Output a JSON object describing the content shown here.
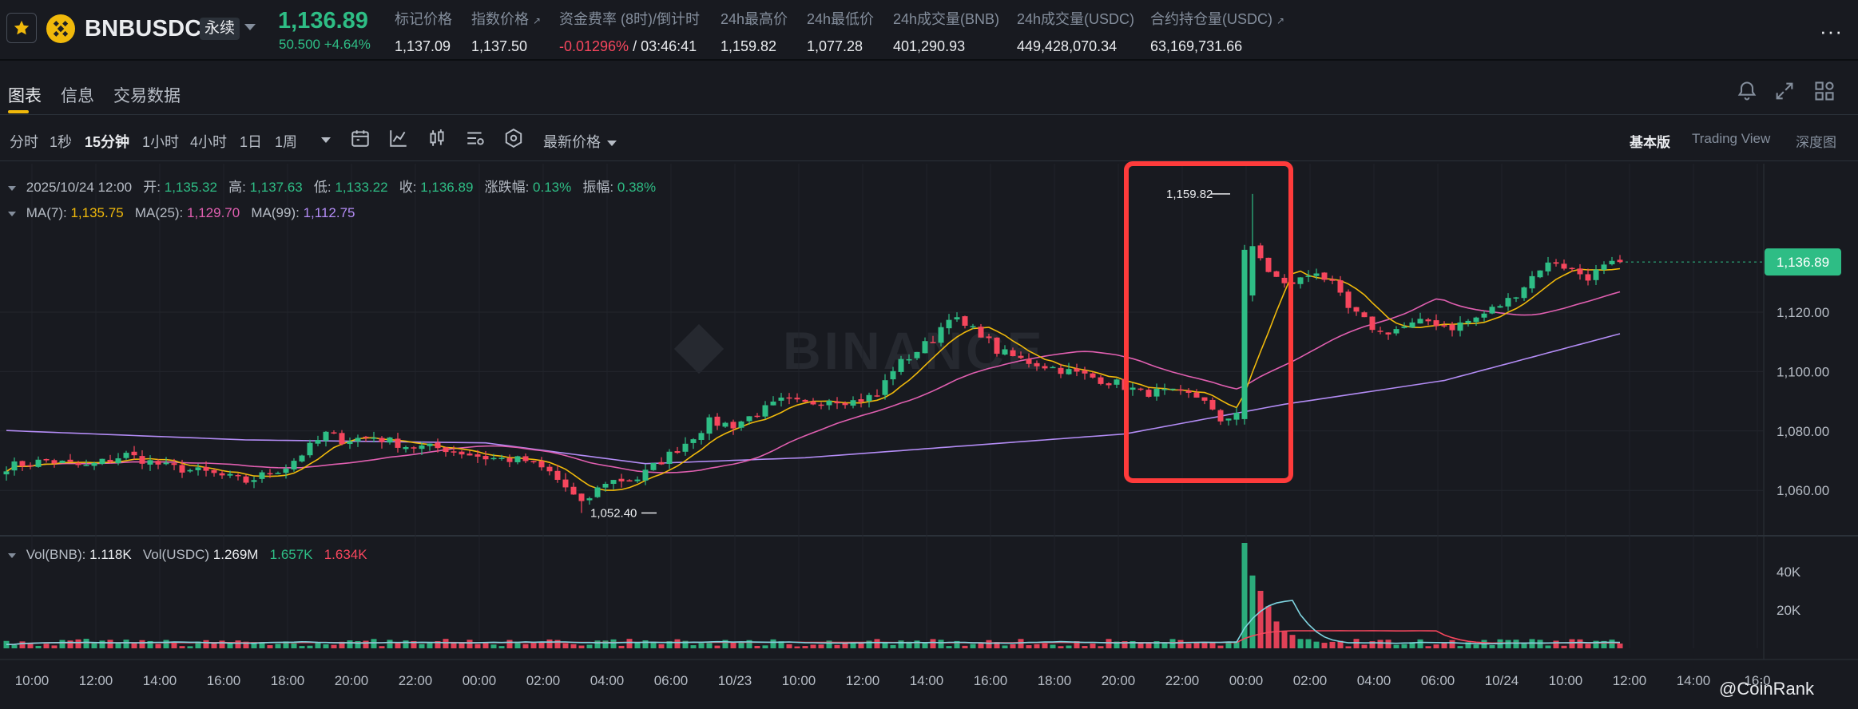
{
  "header": {
    "symbol": "BNBUSDC",
    "contract_badge": "永续",
    "last_price": "1,136.89",
    "change": "50.500 +4.64%",
    "stats": [
      {
        "label": "标记价格",
        "value": "1,137.09",
        "ext": false
      },
      {
        "label": "指数价格",
        "value": "1,137.50",
        "ext": true
      },
      {
        "label": "资金费率 (8时)/倒计时",
        "value_neg": "-0.01296%",
        "value": " / 03:46:41",
        "ext": false
      },
      {
        "label": "24h最高价",
        "value": "1,159.82",
        "ext": false
      },
      {
        "label": "24h最低价",
        "value": "1,077.28",
        "ext": false
      },
      {
        "label": "24h成交量(BNB)",
        "value": "401,290.93",
        "ext": false
      },
      {
        "label": "24h成交量(USDC)",
        "value": "449,428,070.34",
        "ext": false
      },
      {
        "label": "合约持仓量(USDC)",
        "value": "63,169,731.66",
        "ext": true
      }
    ],
    "more": "···"
  },
  "tabs": [
    "图表",
    "信息",
    "交易数据"
  ],
  "intervals": [
    "分时",
    "1秒",
    "15分钟",
    "1小时",
    "4小时",
    "1日",
    "1周"
  ],
  "active_interval": "15分钟",
  "price_type": "最新价格",
  "views": [
    "基本版",
    "Trading View",
    "深度图"
  ],
  "icons": {
    "toolbar": [
      "calendar-icon",
      "indicator-icon",
      "candle-type-icon",
      "settings-list-icon",
      "hexagon-settings-icon"
    ],
    "top_right": [
      "bell-icon",
      "expand-icon",
      "layout-grid-icon"
    ]
  },
  "legend": {
    "date": "2025/10/24 12:00",
    "open_label": "开:",
    "open": "1,135.32",
    "high_label": "高:",
    "high": "1,137.63",
    "low_label": "低:",
    "low": "1,133.22",
    "close_label": "收:",
    "close": "1,136.89",
    "chg_label": "涨跌幅:",
    "chg": "0.13%",
    "amp_label": "振幅:",
    "amp": "0.38%",
    "ma7_label": "MA(7):",
    "ma7": "1,135.75",
    "ma25_label": "MA(25):",
    "ma25": "1,129.70",
    "ma99_label": "MA(99):",
    "ma99": "1,112.75",
    "vol_bnb_label": "Vol(BNB):",
    "vol_bnb": "1.118K",
    "vol_usdc_label": "Vol(USDC)",
    "vol_usdc": "1.269M",
    "vol_ma1": "1.657K",
    "vol_ma2": "1.634K"
  },
  "watermark": "BINANCE",
  "credit": "@CoinRank",
  "colors": {
    "up": "#2ebd85",
    "down": "#f6465d",
    "ma7": "#f0b90b",
    "ma25": "#e05fb0",
    "ma99": "#b38cf5",
    "highlight": "#ff3b3b",
    "accent": "#f0b90b"
  },
  "chart_data": {
    "type": "candlestick",
    "ylim": [
      1045,
      1170
    ],
    "y_ticks": [
      "1,120.00",
      "1,100.00",
      "1,080.00",
      "1,060.00"
    ],
    "y_tick_values": [
      1120,
      1100,
      1080,
      1060
    ],
    "x_ticks": [
      "10:00",
      "12:00",
      "14:00",
      "16:00",
      "18:00",
      "20:00",
      "22:00",
      "00:00",
      "02:00",
      "04:00",
      "06:00",
      "10/23",
      "10:00",
      "12:00",
      "14:00",
      "16:00",
      "18:00",
      "20:00",
      "22:00",
      "00:00",
      "02:00",
      "04:00",
      "06:00",
      "10/24",
      "10:00",
      "12:00",
      "14:00",
      "16:0"
    ],
    "current_price_label": "1,136.89",
    "current_price": 1136.89,
    "high_marker": {
      "label": "1,159.82",
      "value": 1159.82
    },
    "low_marker": {
      "label": "1,052.40",
      "value": 1052.4
    },
    "price_anchors": [
      [
        0,
        1068
      ],
      [
        5,
        1070
      ],
      [
        10,
        1068
      ],
      [
        15,
        1072
      ],
      [
        20,
        1068
      ],
      [
        25,
        1066
      ],
      [
        30,
        1063
      ],
      [
        35,
        1068
      ],
      [
        40,
        1079
      ],
      [
        42,
        1077
      ],
      [
        46,
        1078
      ],
      [
        50,
        1075
      ],
      [
        55,
        1074
      ],
      [
        60,
        1071
      ],
      [
        65,
        1070
      ],
      [
        68,
        1066
      ],
      [
        70,
        1061
      ],
      [
        72,
        1055
      ],
      [
        75,
        1063
      ],
      [
        79,
        1064
      ],
      [
        82,
        1070
      ],
      [
        85,
        1076
      ],
      [
        88,
        1083
      ],
      [
        91,
        1082
      ],
      [
        94,
        1086
      ],
      [
        97,
        1090
      ],
      [
        100,
        1089
      ],
      [
        103,
        1091
      ],
      [
        106,
        1090
      ],
      [
        109,
        1092
      ],
      [
        111,
        1101
      ],
      [
        114,
        1107
      ],
      [
        116,
        1111
      ],
      [
        118,
        1119
      ],
      [
        120,
        1115
      ],
      [
        122,
        1113
      ],
      [
        124,
        1107
      ],
      [
        127,
        1104
      ],
      [
        130,
        1102
      ],
      [
        133,
        1100
      ],
      [
        136,
        1098
      ],
      [
        139,
        1096
      ],
      [
        142,
        1093
      ],
      [
        145,
        1093
      ],
      [
        148,
        1092
      ],
      [
        150,
        1091
      ],
      [
        152,
        1082
      ],
      [
        154,
        1087
      ],
      [
        155,
        1126
      ],
      [
        156,
        1141
      ],
      [
        157,
        1138
      ],
      [
        158,
        1134
      ],
      [
        160,
        1129
      ],
      [
        162,
        1131
      ],
      [
        164,
        1134
      ],
      [
        166,
        1129
      ],
      [
        168,
        1121
      ],
      [
        170,
        1117
      ],
      [
        172,
        1113
      ],
      [
        175,
        1115
      ],
      [
        178,
        1117
      ],
      [
        181,
        1115
      ],
      [
        184,
        1118
      ],
      [
        186,
        1121
      ],
      [
        188,
        1124
      ],
      [
        190,
        1129
      ],
      [
        192,
        1135
      ],
      [
        194,
        1137
      ],
      [
        196,
        1134
      ],
      [
        198,
        1132
      ],
      [
        200,
        1135
      ],
      [
        202,
        1136.89
      ]
    ],
    "ma99_anchors": [
      [
        -8,
        1081
      ],
      [
        30,
        1077
      ],
      [
        60,
        1076
      ],
      [
        80,
        1069
      ],
      [
        100,
        1071
      ],
      [
        120,
        1075
      ],
      [
        140,
        1079
      ],
      [
        160,
        1089
      ],
      [
        180,
        1097
      ],
      [
        202,
        1112.75
      ]
    ],
    "vol_ylim": [
      0,
      55
    ],
    "vol_ticks": [
      "40K",
      "20K"
    ],
    "vol_tick_values": [
      40,
      20
    ],
    "volume_spikes": [
      [
        155,
        55
      ],
      [
        156,
        38
      ],
      [
        157,
        30
      ],
      [
        158,
        22
      ],
      [
        159,
        14
      ],
      [
        160,
        9
      ],
      [
        161,
        7
      ]
    ]
  }
}
